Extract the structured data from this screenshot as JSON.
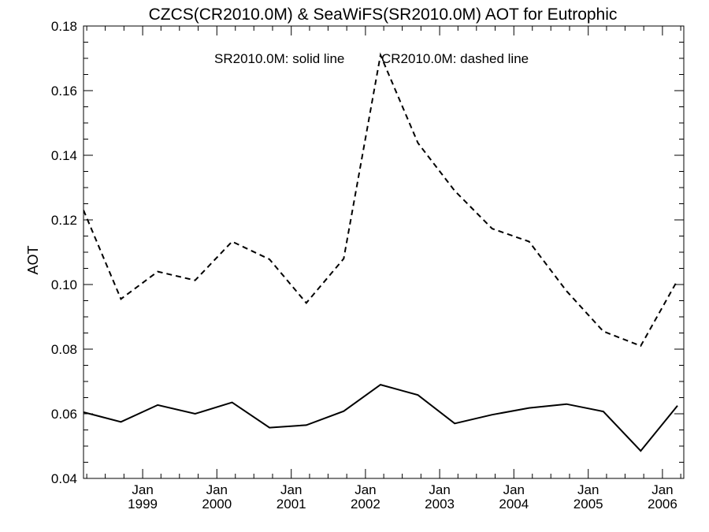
{
  "chart_data": {
    "type": "line",
    "title": "CZCS(CR2010.0M) & SeaWiFS(SR2010.0M)  AOT for Eutrophic",
    "ylabel": "AOT",
    "xlabel": "",
    "ylim": [
      0.04,
      0.18
    ],
    "xlim": [
      "1998-03-16",
      "2006-04-16"
    ],
    "yticks": [
      0.04,
      0.06,
      0.08,
      0.1,
      0.12,
      0.14,
      0.16,
      0.18
    ],
    "ytick_labels": [
      "0.04",
      "0.06",
      "0.08",
      "0.10",
      "0.12",
      "0.14",
      "0.16",
      "0.18"
    ],
    "xticks": [
      {
        "date": "1999-01-01",
        "month": "Jan",
        "year": "1999"
      },
      {
        "date": "2000-01-01",
        "month": "Jan",
        "year": "2000"
      },
      {
        "date": "2001-01-01",
        "month": "Jan",
        "year": "2001"
      },
      {
        "date": "2002-01-01",
        "month": "Jan",
        "year": "2002"
      },
      {
        "date": "2003-01-01",
        "month": "Jan",
        "year": "2003"
      },
      {
        "date": "2004-01-01",
        "month": "Jan",
        "year": "2004"
      },
      {
        "date": "2005-01-01",
        "month": "Jan",
        "year": "2005"
      },
      {
        "date": "2006-01-01",
        "month": "Jan",
        "year": "2006"
      }
    ],
    "grid": false,
    "annotations": [
      "SR2010.0M: solid line",
      "CR2010.0M: dashed line"
    ],
    "series": [
      {
        "style": "solid",
        "x": [
          "1998-03-16",
          "1998-09-16",
          "1999-03-16",
          "1999-09-16",
          "2000-03-16",
          "2000-09-16",
          "2001-03-16",
          "2001-09-16",
          "2002-03-16",
          "2002-09-16",
          "2003-03-16",
          "2003-09-16",
          "2004-03-16",
          "2004-09-16",
          "2005-03-16",
          "2005-09-16",
          "2006-03-16"
        ],
        "values": [
          0.0605,
          0.0575,
          0.0627,
          0.06,
          0.0635,
          0.0557,
          0.0565,
          0.0608,
          0.069,
          0.0658,
          0.057,
          0.0597,
          0.0618,
          0.063,
          0.0607,
          0.0485,
          0.0625
        ]
      },
      {
        "style": "dashed",
        "x": [
          "1998-03-16",
          "1998-09-16",
          "1999-03-16",
          "1999-09-16",
          "2000-03-16",
          "2000-09-16",
          "2001-03-16",
          "2001-09-16",
          "2002-03-16",
          "2002-09-16",
          "2003-03-16",
          "2003-09-16",
          "2004-03-16",
          "2004-09-16",
          "2005-03-16",
          "2005-09-16",
          "2006-03-16"
        ],
        "values": [
          0.123,
          0.0955,
          0.104,
          0.1013,
          0.1133,
          0.1078,
          0.0943,
          0.108,
          0.171,
          0.1438,
          0.129,
          0.1173,
          0.1133,
          0.098,
          0.0855,
          0.081,
          0.1013
        ]
      }
    ]
  }
}
